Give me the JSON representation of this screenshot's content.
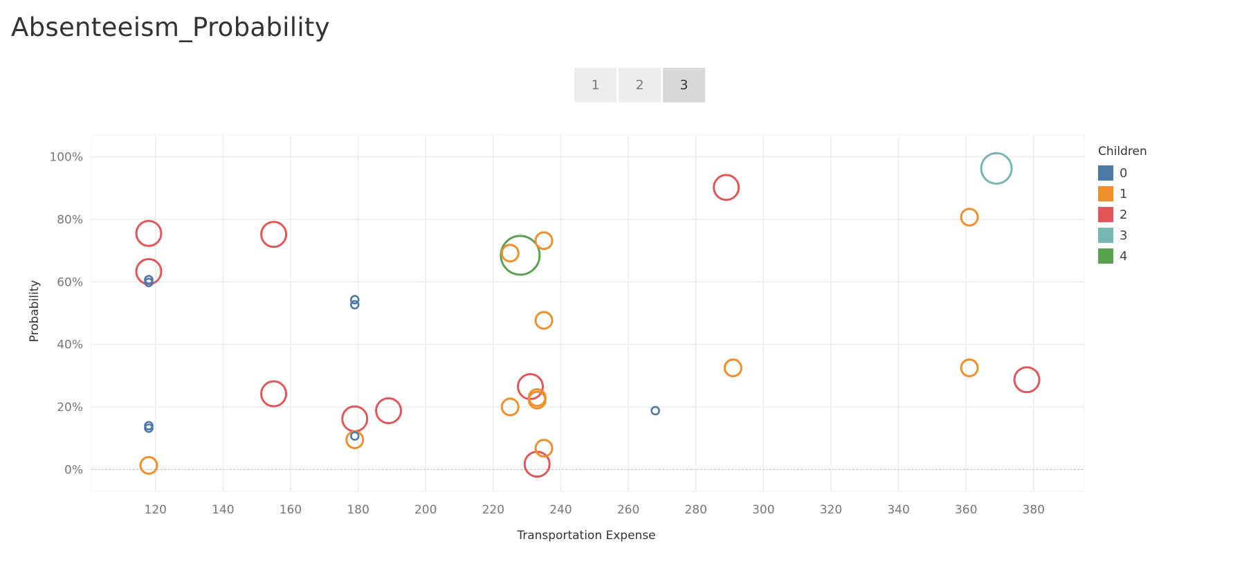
{
  "title": "Absenteeism_Probability",
  "pager": {
    "pages": [
      "1",
      "2",
      "3"
    ],
    "active_index": 2
  },
  "legend": {
    "title": "Children",
    "items": [
      {
        "label": "0",
        "color": "#4e79a7"
      },
      {
        "label": "1",
        "color": "#f28e2b"
      },
      {
        "label": "2",
        "color": "#e15759"
      },
      {
        "label": "3",
        "color": "#76b7b2"
      },
      {
        "label": "4",
        "color": "#59a14f"
      }
    ]
  },
  "chart_data": {
    "type": "scatter",
    "xlabel": "Transportation Expense",
    "ylabel": "Probability",
    "xlim": [
      101,
      395
    ],
    "ylim": [
      -0.07,
      1.07
    ],
    "xticks": [
      120,
      140,
      160,
      180,
      200,
      220,
      240,
      260,
      280,
      300,
      320,
      340,
      360,
      380
    ],
    "yticks": [
      0,
      0.2,
      0.4,
      0.6,
      0.8,
      1.0
    ],
    "ytick_labels": [
      "0%",
      "20%",
      "40%",
      "60%",
      "80%",
      "100%"
    ],
    "grid": true,
    "legend_position": "right",
    "points": [
      {
        "x": 118,
        "y": 0.755,
        "children": 2
      },
      {
        "x": 118,
        "y": 0.633,
        "children": 2
      },
      {
        "x": 118,
        "y": 0.607,
        "children": 0
      },
      {
        "x": 118,
        "y": 0.598,
        "children": 0
      },
      {
        "x": 118,
        "y": 0.14,
        "children": 0
      },
      {
        "x": 118,
        "y": 0.132,
        "children": 0
      },
      {
        "x": 118,
        "y": 0.013,
        "children": 1
      },
      {
        "x": 155,
        "y": 0.752,
        "children": 2
      },
      {
        "x": 155,
        "y": 0.242,
        "children": 2
      },
      {
        "x": 179,
        "y": 0.543,
        "children": 0
      },
      {
        "x": 179,
        "y": 0.527,
        "children": 0
      },
      {
        "x": 179,
        "y": 0.162,
        "children": 2
      },
      {
        "x": 179,
        "y": 0.107,
        "children": 0
      },
      {
        "x": 179,
        "y": 0.095,
        "children": 1
      },
      {
        "x": 189,
        "y": 0.188,
        "children": 2
      },
      {
        "x": 225,
        "y": 0.692,
        "children": 1
      },
      {
        "x": 225,
        "y": 0.2,
        "children": 1
      },
      {
        "x": 228,
        "y": 0.685,
        "children": 4
      },
      {
        "x": 231,
        "y": 0.265,
        "children": 2
      },
      {
        "x": 233,
        "y": 0.23,
        "children": 1
      },
      {
        "x": 233,
        "y": 0.222,
        "children": 1
      },
      {
        "x": 233,
        "y": 0.017,
        "children": 2
      },
      {
        "x": 235,
        "y": 0.732,
        "children": 1
      },
      {
        "x": 235,
        "y": 0.477,
        "children": 1
      },
      {
        "x": 235,
        "y": 0.068,
        "children": 1
      },
      {
        "x": 268,
        "y": 0.188,
        "children": 0
      },
      {
        "x": 289,
        "y": 0.902,
        "children": 2
      },
      {
        "x": 291,
        "y": 0.325,
        "children": 1
      },
      {
        "x": 361,
        "y": 0.807,
        "children": 1
      },
      {
        "x": 361,
        "y": 0.325,
        "children": 1
      },
      {
        "x": 369,
        "y": 0.963,
        "children": 3
      },
      {
        "x": 378,
        "y": 0.287,
        "children": 2
      }
    ]
  }
}
